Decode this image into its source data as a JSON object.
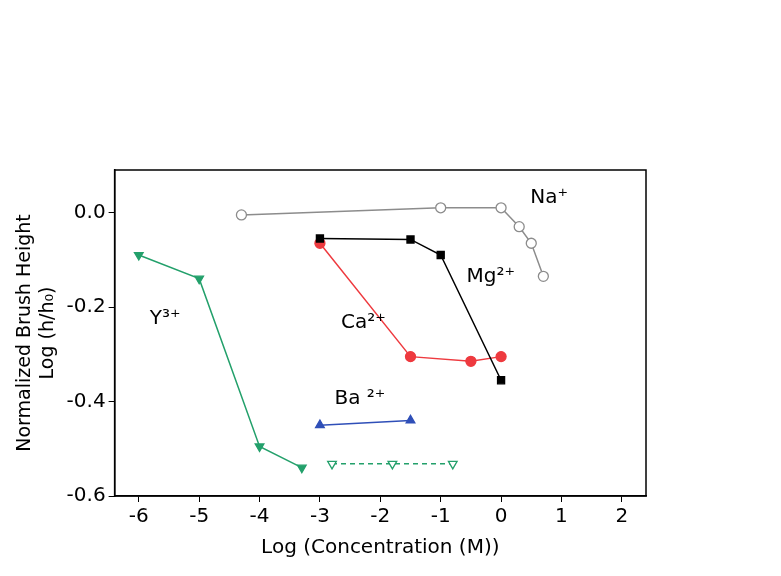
{
  "chart_data": {
    "type": "line",
    "x_label": "Log (Concentration (M))",
    "y_label": [
      "Normalized Brush Height",
      "Log (h/h₀)"
    ],
    "xlim": [
      -6.4,
      2.4
    ],
    "xticks": [
      -6,
      -5,
      -4,
      -3,
      -2,
      -1,
      0,
      1,
      2
    ],
    "ylim": [
      -0.6,
      0.09
    ],
    "yticks": [
      {
        "value": 0,
        "label": "0.0"
      },
      -0.2,
      -0.4,
      -0.6
    ],
    "grid": false,
    "series": [
      {
        "name": "Na⁺",
        "color": "#8c8c8c",
        "marker": "circle_open",
        "line_style": "solid",
        "x": [
          -4.3,
          -1,
          0,
          0.3,
          0.5,
          0.7
        ],
        "values": [
          -0.005,
          0.01,
          0.01,
          -0.03,
          -0.065,
          -0.135
        ]
      },
      {
        "name": "Mg²⁺",
        "color": "#000000",
        "marker": "square",
        "line_style": "solid",
        "x": [
          -3,
          -1.5,
          -1,
          0
        ],
        "values": [
          -0.055,
          -0.057,
          -0.09,
          -0.355
        ]
      },
      {
        "name": "Ca²⁺",
        "color": "#ee3a3f",
        "marker": "circle",
        "line_style": "solid",
        "x": [
          -3,
          -1.5,
          -0.5,
          0
        ],
        "values": [
          -0.065,
          -0.305,
          -0.315,
          -0.305
        ]
      },
      {
        "name": "Ba ²⁺",
        "color": "#2f4fb8",
        "marker": "triangle",
        "line_style": "solid",
        "x": [
          -3,
          -1.5
        ],
        "values": [
          -0.45,
          -0.44
        ]
      },
      {
        "name": "Y³⁺",
        "color": "#23a06b",
        "marker": "triangle_down",
        "line_style": "solid",
        "x": [
          -6,
          -5,
          -4,
          -3.3
        ],
        "values": [
          -0.09,
          -0.14,
          -0.495,
          -0.54
        ]
      },
      {
        "color": "#23a06b",
        "marker": "triangle_down_open",
        "line_style": "dashed",
        "x": [
          -2.8,
          -1.8,
          -0.8
        ],
        "values": [
          -0.532,
          -0.532,
          -0.532
        ]
      }
    ]
  }
}
